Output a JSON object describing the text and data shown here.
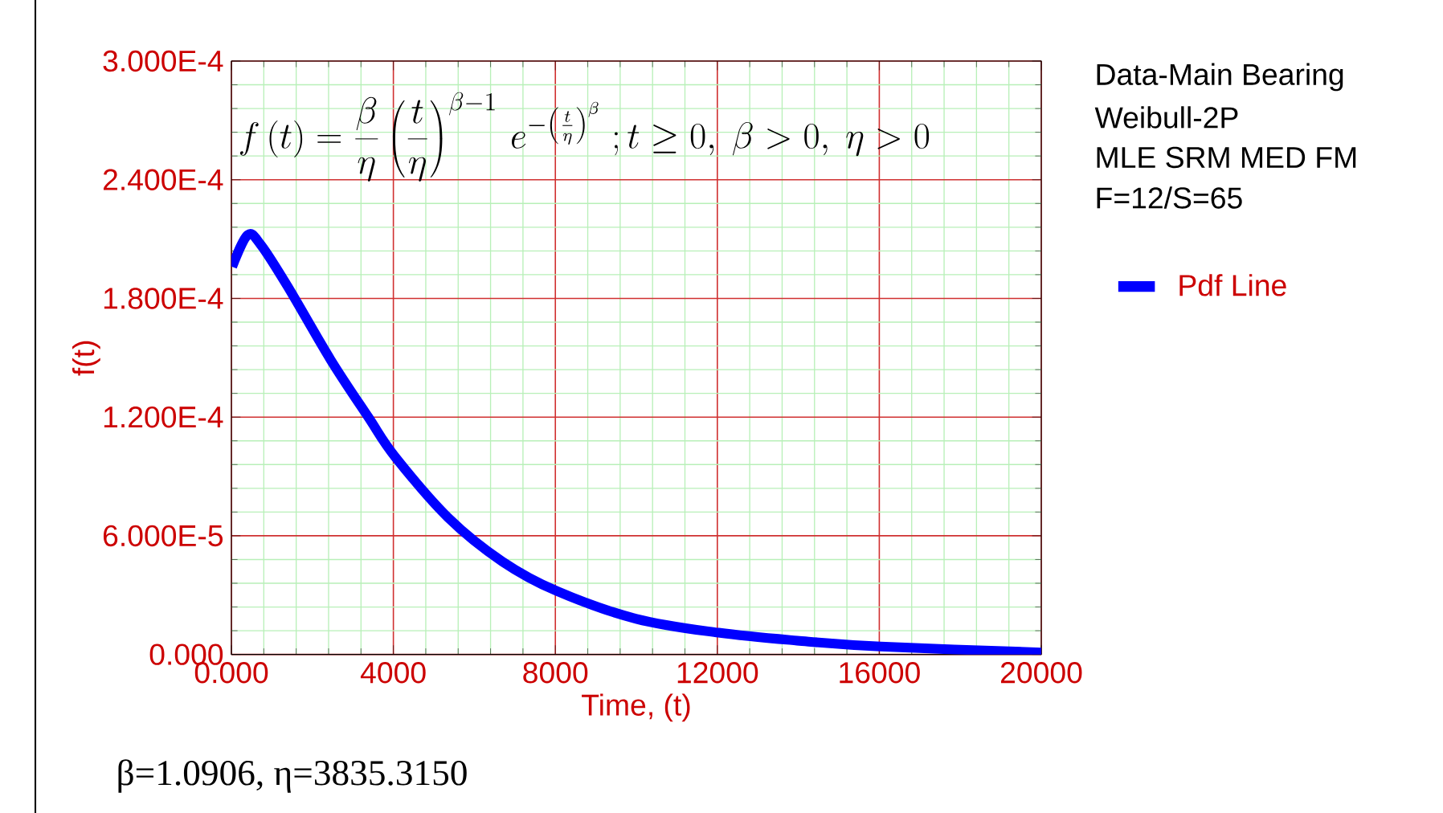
{
  "chart_data": {
    "type": "line",
    "xlabel": "Time, (t)",
    "ylabel": "f(t)",
    "annotations": [
      "f\\left(t\\right)=\\frac{\\beta}{\\eta}\\left(\\frac{t}{\\eta}\\right)^{\\beta-1}\\,e^{-\\left(\\frac{t}{\\eta}\\right)^{\\beta}}\\;;t\\geq 0,\\ \\beta>0,\\ \\eta>0",
      "Data-Main Bearing",
      "Weibull-2P",
      "MLE SRM MED FM",
      "F=12/S=65",
      "β=1.0906, η=3835.3150"
    ],
    "series": [
      {
        "name": "Pdf Line",
        "color": "#0000ff",
        "x": [
          20,
          400,
          730,
          1390,
          2450,
          3380,
          4040,
          5360,
          6690,
          8040,
          10000,
          12030,
          13970,
          16030,
          20000
        ],
        "values": [
          0.000196,
          0.000212,
          0.000207,
          0.000186,
          0.000149,
          0.00012,
          0.0001,
          6.9e-05,
          4.7e-05,
          3.2e-05,
          1.8e-05,
          1.1e-05,
          7e-06,
          4e-06,
          1e-06
        ]
      }
    ],
    "xlim": [
      0,
      20000
    ],
    "ylim": [
      0,
      0.0003
    ],
    "xticks": [
      {
        "value": 0,
        "label": "0.000"
      },
      {
        "value": 800,
        "label": null
      },
      {
        "value": 1600,
        "label": null
      },
      {
        "value": 2400,
        "label": null
      },
      {
        "value": 3200,
        "label": null
      },
      4000,
      {
        "value": 4800,
        "label": null
      },
      {
        "value": 5600,
        "label": null
      },
      {
        "value": 6400,
        "label": null
      },
      {
        "value": 7200,
        "label": null
      },
      8000,
      {
        "value": 8800,
        "label": null
      },
      {
        "value": 9600,
        "label": null
      },
      {
        "value": 10400,
        "label": null
      },
      {
        "value": 11200,
        "label": null
      },
      12000,
      {
        "value": 12800,
        "label": null
      },
      {
        "value": 13600,
        "label": null
      },
      {
        "value": 14400,
        "label": null
      },
      {
        "value": 15200,
        "label": null
      },
      16000,
      {
        "value": 16800,
        "label": null
      },
      {
        "value": 17600,
        "label": null
      },
      {
        "value": 18400,
        "label": null
      },
      {
        "value": 19200,
        "label": null
      },
      20000
    ],
    "yticks": [
      {
        "value": 0,
        "label": "0.000"
      },
      {
        "value": 1.2e-05,
        "label": null
      },
      {
        "value": 2.4e-05,
        "label": null
      },
      {
        "value": 3.6e-05,
        "label": null
      },
      {
        "value": 4.8e-05,
        "label": null
      },
      {
        "value": 6e-05,
        "label": "6.000E-5"
      },
      {
        "value": 7.2e-05,
        "label": null
      },
      {
        "value": 8.4e-05,
        "label": null
      },
      {
        "value": 9.6e-05,
        "label": null
      },
      {
        "value": 0.000108,
        "label": null
      },
      {
        "value": 0.00012,
        "label": "1.200E-4"
      },
      {
        "value": 0.000132,
        "label": null
      },
      {
        "value": 0.000144,
        "label": null
      },
      {
        "value": 0.000156,
        "label": null
      },
      {
        "value": 0.000168,
        "label": null
      },
      {
        "value": 0.00018,
        "label": "1.800E-4"
      },
      {
        "value": 0.000192,
        "label": null
      },
      {
        "value": 0.000204,
        "label": null
      },
      {
        "value": 0.000216,
        "label": null
      },
      {
        "value": 0.000228,
        "label": null
      },
      {
        "value": 0.00024,
        "label": "2.400E-4"
      },
      {
        "value": 0.000252,
        "label": null
      },
      {
        "value": 0.000264,
        "label": null
      },
      {
        "value": 0.000276,
        "label": null
      },
      {
        "value": 0.000288,
        "label": null
      },
      {
        "value": 0.0003,
        "label": "3.000E-4"
      }
    ],
    "grid": true,
    "legend": "right",
    "marker": "none",
    "line_style": "solid"
  }
}
